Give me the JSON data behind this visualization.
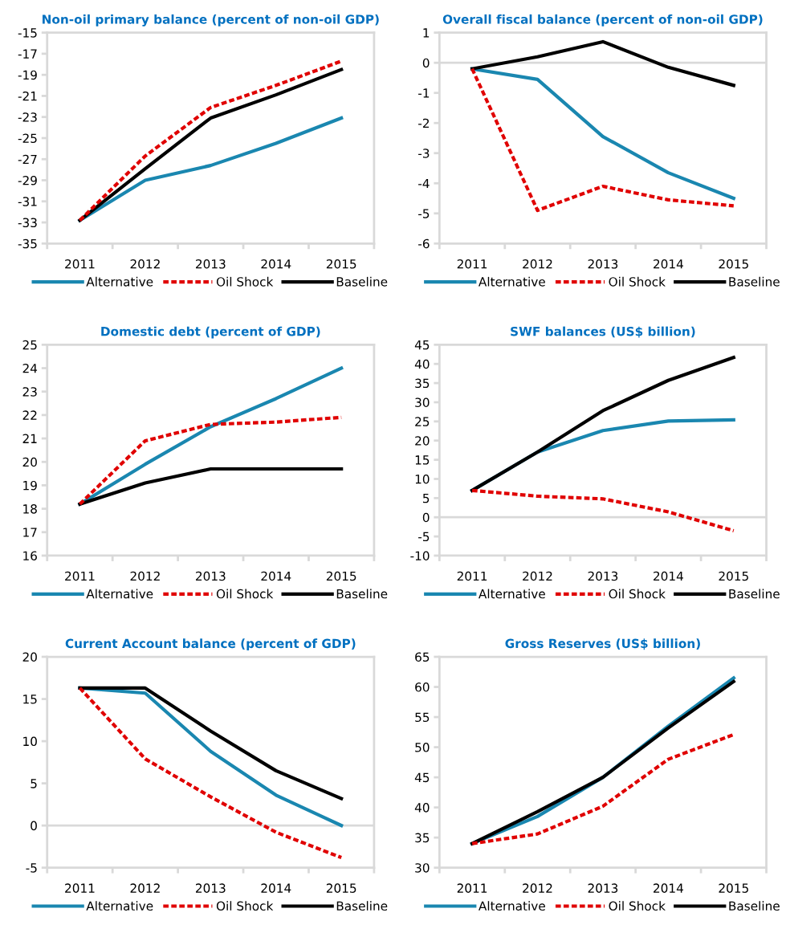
{
  "chart_data": [
    {
      "type": "line",
      "title": "Non-oil primary balance (percent of non-oil GDP)",
      "categories": [
        "2011",
        "2012",
        "2013",
        "2014",
        "2015"
      ],
      "ylim": [
        -35,
        -15
      ],
      "yticks": [
        -35,
        -33,
        -31,
        -29,
        -27,
        -25,
        -23,
        -21,
        -19,
        -17,
        -15
      ],
      "legend": "bottom",
      "series": [
        {
          "name": "Alternative",
          "color": "#1a87b0",
          "line_style": "solid",
          "values": [
            -32.8,
            -29.0,
            -27.6,
            -25.5,
            -23.1
          ]
        },
        {
          "name": "Oil Shock",
          "color": "#e00000",
          "line_style": "dashed",
          "values": [
            -32.8,
            -26.7,
            -22.1,
            -20.0,
            -17.7
          ]
        },
        {
          "name": "Baseline",
          "color": "#000000",
          "line_style": "solid",
          "values": [
            -32.8,
            -27.9,
            -23.1,
            -20.9,
            -18.5
          ]
        }
      ]
    },
    {
      "type": "line",
      "title": "Overall fiscal balance (percent of non-oil GDP)",
      "categories": [
        "2011",
        "2012",
        "2013",
        "2014",
        "2015"
      ],
      "ylim": [
        -6,
        1
      ],
      "yticks": [
        -6,
        -5,
        -4,
        -3,
        -2,
        -1,
        0,
        1
      ],
      "legend": "bottom",
      "ref_lines": [
        {
          "axis": "y",
          "value": 0,
          "color": "#d9d9d9"
        }
      ],
      "series": [
        {
          "name": "Alternative",
          "color": "#1a87b0",
          "line_style": "solid",
          "values": [
            -0.2,
            -0.55,
            -2.45,
            -3.65,
            -4.5
          ]
        },
        {
          "name": "Oil Shock",
          "color": "#e00000",
          "line_style": "dashed",
          "values": [
            -0.2,
            -4.9,
            -4.1,
            -4.55,
            -4.75
          ]
        },
        {
          "name": "Baseline",
          "color": "#000000",
          "line_style": "solid",
          "values": [
            -0.2,
            0.2,
            0.7,
            -0.15,
            -0.75
          ]
        }
      ]
    },
    {
      "type": "line",
      "title": "Domestic debt (percent of GDP)",
      "categories": [
        "2011",
        "2012",
        "2013",
        "2014",
        "2015"
      ],
      "ylim": [
        16,
        25
      ],
      "yticks": [
        16,
        17,
        18,
        19,
        20,
        21,
        22,
        23,
        24,
        25
      ],
      "legend": "bottom",
      "series": [
        {
          "name": "Alternative",
          "color": "#1a87b0",
          "line_style": "solid",
          "values": [
            18.2,
            19.9,
            21.5,
            22.7,
            24.0
          ]
        },
        {
          "name": "Oil Shock",
          "color": "#e00000",
          "line_style": "dashed",
          "values": [
            18.2,
            20.9,
            21.6,
            21.7,
            21.9
          ]
        },
        {
          "name": "Baseline",
          "color": "#000000",
          "line_style": "solid",
          "values": [
            18.2,
            19.1,
            19.7,
            19.7,
            19.7
          ]
        }
      ]
    },
    {
      "type": "line",
      "title": "SWF balances (US$ billion)",
      "categories": [
        "2011",
        "2012",
        "2013",
        "2014",
        "2015"
      ],
      "ylim": [
        -10,
        45
      ],
      "yticks": [
        -10,
        -5,
        0,
        5,
        10,
        15,
        20,
        25,
        30,
        35,
        40,
        45
      ],
      "legend": "bottom",
      "ref_lines": [
        {
          "axis": "y",
          "value": 0,
          "color": "#d9d9d9"
        }
      ],
      "series": [
        {
          "name": "Alternative",
          "color": "#1a87b0",
          "line_style": "solid",
          "values": [
            7,
            17,
            22.6,
            25.1,
            25.4
          ]
        },
        {
          "name": "Oil Shock",
          "color": "#e00000",
          "line_style": "dashed",
          "values": [
            7,
            5.5,
            4.8,
            1.4,
            -3.5
          ]
        },
        {
          "name": "Baseline",
          "color": "#000000",
          "line_style": "solid",
          "values": [
            7,
            17,
            27.8,
            35.7,
            41.7
          ]
        }
      ]
    },
    {
      "type": "line",
      "title": "Current Account balance (percent of GDP)",
      "categories": [
        "2011",
        "2012",
        "2013",
        "2014",
        "2015"
      ],
      "ylim": [
        -5,
        20
      ],
      "yticks": [
        -5,
        0,
        5,
        10,
        15,
        20
      ],
      "legend": "bottom",
      "ref_lines": [
        {
          "axis": "y",
          "value": 0,
          "color": "#d9d9d9"
        }
      ],
      "series": [
        {
          "name": "Alternative",
          "color": "#1a87b0",
          "line_style": "solid",
          "values": [
            16.3,
            15.7,
            8.8,
            3.6,
            0.0
          ]
        },
        {
          "name": "Oil Shock",
          "color": "#e00000",
          "line_style": "dashed",
          "values": [
            16.3,
            7.9,
            3.4,
            -0.8,
            -3.8
          ]
        },
        {
          "name": "Baseline",
          "color": "#000000",
          "line_style": "solid",
          "values": [
            16.3,
            16.3,
            11.2,
            6.5,
            3.2
          ]
        }
      ]
    },
    {
      "type": "line",
      "title": "Gross Reserves (US$ billion)",
      "categories": [
        "2011",
        "2012",
        "2013",
        "2014",
        "2015"
      ],
      "ylim": [
        30,
        65
      ],
      "yticks": [
        30,
        35,
        40,
        45,
        50,
        55,
        60,
        65
      ],
      "legend": "bottom",
      "series": [
        {
          "name": "Alternative",
          "color": "#1a87b0",
          "line_style": "solid",
          "values": [
            34,
            38.5,
            45,
            53.5,
            61.5
          ]
        },
        {
          "name": "Oil Shock",
          "color": "#e00000",
          "line_style": "dashed",
          "values": [
            34,
            35.6,
            40.2,
            48,
            52.1
          ]
        },
        {
          "name": "Baseline",
          "color": "#000000",
          "line_style": "solid",
          "values": [
            34,
            39.3,
            45,
            53.2,
            60.9
          ]
        }
      ]
    }
  ]
}
